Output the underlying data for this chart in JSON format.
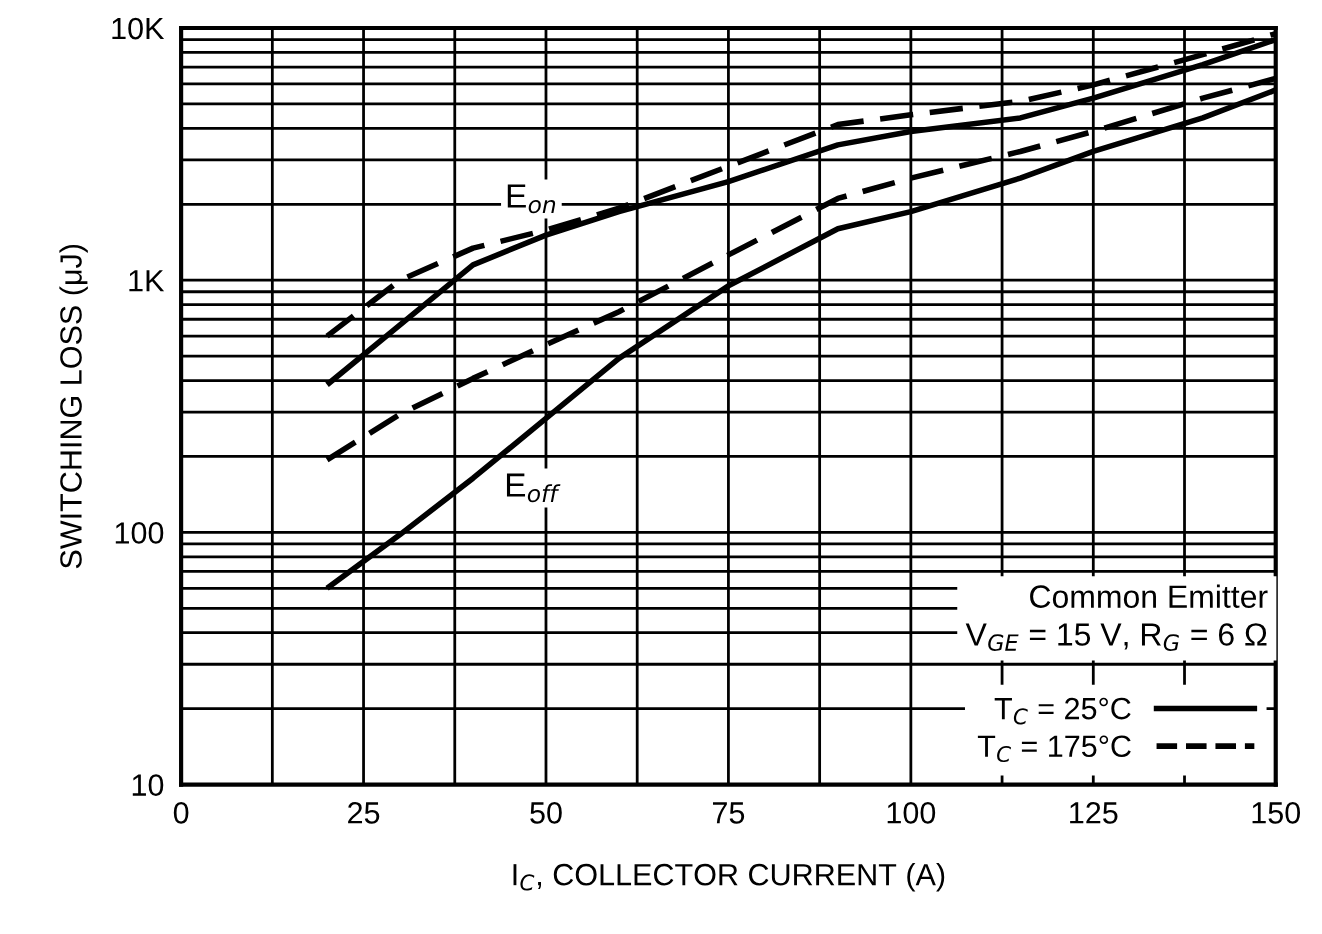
{
  "chart_data": {
    "type": "line",
    "xlabel": "I$_{C}$, COLLECTOR CURRENT (A)",
    "ylabel": "SWITCHING LOSS (μJ)",
    "log": "y",
    "grid": true,
    "legend": "bottom right",
    "marker": "none",
    "xlim": [
      0,
      150
    ],
    "ylim": [
      10,
      10000
    ],
    "xticks": [
      0,
      {
        "value": 12.5,
        "label": null
      },
      25,
      {
        "value": 37.5,
        "label": null
      },
      50,
      {
        "value": 62.5,
        "label": null
      },
      75,
      {
        "value": 87.5,
        "label": null
      },
      100,
      {
        "value": 112.5,
        "label": null
      },
      125,
      {
        "value": 137.5,
        "label": null
      },
      150
    ],
    "yticks": [
      10,
      {
        "value": 20,
        "label": null
      },
      {
        "value": 30,
        "label": null
      },
      {
        "value": 40,
        "label": null
      },
      {
        "value": 50,
        "label": null
      },
      {
        "value": 60,
        "label": null
      },
      {
        "value": 70,
        "label": null
      },
      {
        "value": 80,
        "label": null
      },
      {
        "value": 90,
        "label": null
      },
      100,
      {
        "value": 200,
        "label": null
      },
      {
        "value": 300,
        "label": null
      },
      {
        "value": 400,
        "label": null
      },
      {
        "value": 500,
        "label": null
      },
      {
        "value": 600,
        "label": null
      },
      {
        "value": 700,
        "label": null
      },
      {
        "value": 800,
        "label": null
      },
      {
        "value": 900,
        "label": null
      },
      {
        "value": 1000,
        "label": "1K"
      },
      {
        "value": 2000,
        "label": null
      },
      {
        "value": 3000,
        "label": null
      },
      {
        "value": 4000,
        "label": null
      },
      {
        "value": 5000,
        "label": null
      },
      {
        "value": 6000,
        "label": null
      },
      {
        "value": 7000,
        "label": null
      },
      {
        "value": 8000,
        "label": null
      },
      {
        "value": 9000,
        "label": null
      },
      {
        "value": 10000,
        "label": "10K"
      }
    ],
    "x": [
      20,
      30,
      40,
      50,
      60,
      75,
      90,
      100,
      115,
      125,
      140,
      150
    ],
    "series": [
      {
        "name": "T$_{C}$ = 25°C",
        "color": "#000000",
        "line_style": "solid",
        "values": [
          385,
          665,
          1150,
          1510,
          1870,
          2460,
          3440,
          3890,
          4400,
          5270,
          7160,
          9000
        ]
      },
      {
        "name": "T$_{C}$ = 175°C",
        "color": "#000000",
        "line_style": "dashed",
        "values": [
          600,
          1000,
          1340,
          1580,
          1930,
          2830,
          4140,
          4530,
          5120,
          5950,
          7840,
          9500
        ]
      },
      {
        "color": "#000000",
        "line_style": "solid",
        "values": [
          60,
          98,
          164,
          283,
          490,
          950,
          1600,
          1870,
          2540,
          3240,
          4400,
          5680
        ]
      },
      {
        "color": "#000000",
        "line_style": "dashed",
        "values": [
          194,
          294,
          408,
          555,
          750,
          1260,
          2110,
          2540,
          3240,
          3890,
          5270,
          6310
        ]
      }
    ],
    "annotations": [
      {
        "text": "E$_{on}$",
        "x": 48,
        "y": 2100
      },
      {
        "text": "E$_{off}$",
        "x": 48,
        "y": 150
      },
      "Common Emitter",
      "V$_{GE}$ = 15 V, R$_{G}$ = 6 Ω"
    ]
  }
}
